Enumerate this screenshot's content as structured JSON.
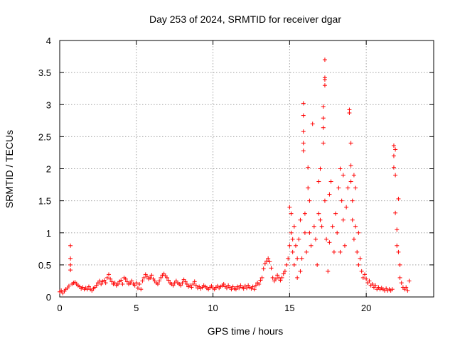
{
  "chart_data": {
    "type": "scatter",
    "title": "Day 253 of 2024, SRMTID for receiver dgar",
    "xlabel": "GPS time / hours",
    "ylabel": "SRMTID / TECUs",
    "xlim": [
      0,
      24.4
    ],
    "ylim": [
      0,
      4
    ],
    "x_ticks": [
      0,
      5,
      10,
      15,
      20
    ],
    "x_tick_labels": [
      "0",
      "5",
      "10",
      "15",
      "20"
    ],
    "y_ticks": [
      0,
      0.5,
      1,
      1.5,
      2,
      2.5,
      3,
      3.5,
      4
    ],
    "y_tick_labels": [
      "0",
      "0.5",
      "1",
      "1.5",
      "2",
      "2.5",
      "3",
      "3.5",
      "4"
    ],
    "grid": true,
    "marker": "+",
    "series": [
      {
        "name": "SRMTID",
        "color": "#ff0000",
        "points": [
          [
            0.0,
            0.08
          ],
          [
            0.1,
            0.1
          ],
          [
            0.2,
            0.06
          ],
          [
            0.3,
            0.09
          ],
          [
            0.4,
            0.12
          ],
          [
            0.5,
            0.14
          ],
          [
            0.6,
            0.17
          ],
          [
            0.7,
            0.8
          ],
          [
            0.7,
            0.6
          ],
          [
            0.7,
            0.5
          ],
          [
            0.7,
            0.42
          ],
          [
            0.8,
            0.2
          ],
          [
            0.9,
            0.22
          ],
          [
            1.0,
            0.23
          ],
          [
            1.1,
            0.2
          ],
          [
            1.2,
            0.18
          ],
          [
            1.3,
            0.16
          ],
          [
            1.4,
            0.13
          ],
          [
            1.5,
            0.15
          ],
          [
            1.6,
            0.12
          ],
          [
            1.7,
            0.14
          ],
          [
            1.8,
            0.12
          ],
          [
            1.9,
            0.16
          ],
          [
            2.0,
            0.12
          ],
          [
            2.1,
            0.1
          ],
          [
            2.2,
            0.13
          ],
          [
            2.3,
            0.15
          ],
          [
            2.4,
            0.18
          ],
          [
            2.5,
            0.22
          ],
          [
            2.6,
            0.25
          ],
          [
            2.7,
            0.2
          ],
          [
            2.8,
            0.24
          ],
          [
            2.9,
            0.26
          ],
          [
            3.0,
            0.22
          ],
          [
            3.1,
            0.3
          ],
          [
            3.2,
            0.35
          ],
          [
            3.3,
            0.28
          ],
          [
            3.4,
            0.24
          ],
          [
            3.5,
            0.2
          ],
          [
            3.6,
            0.22
          ],
          [
            3.7,
            0.18
          ],
          [
            3.8,
            0.2
          ],
          [
            3.9,
            0.24
          ],
          [
            4.0,
            0.26
          ],
          [
            4.1,
            0.2
          ],
          [
            4.2,
            0.3
          ],
          [
            4.3,
            0.28
          ],
          [
            4.4,
            0.24
          ],
          [
            4.5,
            0.2
          ],
          [
            4.6,
            0.22
          ],
          [
            4.7,
            0.25
          ],
          [
            4.8,
            0.2
          ],
          [
            4.9,
            0.18
          ],
          [
            5.0,
            0.22
          ],
          [
            5.1,
            0.14
          ],
          [
            5.2,
            0.2
          ],
          [
            5.3,
            0.12
          ],
          [
            5.4,
            0.25
          ],
          [
            5.5,
            0.3
          ],
          [
            5.6,
            0.35
          ],
          [
            5.7,
            0.32
          ],
          [
            5.8,
            0.28
          ],
          [
            5.9,
            0.3
          ],
          [
            6.0,
            0.34
          ],
          [
            6.1,
            0.28
          ],
          [
            6.2,
            0.25
          ],
          [
            6.3,
            0.22
          ],
          [
            6.4,
            0.2
          ],
          [
            6.5,
            0.25
          ],
          [
            6.6,
            0.3
          ],
          [
            6.7,
            0.34
          ],
          [
            6.8,
            0.36
          ],
          [
            6.9,
            0.33
          ],
          [
            7.0,
            0.3
          ],
          [
            7.1,
            0.26
          ],
          [
            7.2,
            0.22
          ],
          [
            7.3,
            0.2
          ],
          [
            7.4,
            0.18
          ],
          [
            7.5,
            0.22
          ],
          [
            7.6,
            0.25
          ],
          [
            7.7,
            0.22
          ],
          [
            7.8,
            0.2
          ],
          [
            7.9,
            0.18
          ],
          [
            8.0,
            0.22
          ],
          [
            8.1,
            0.27
          ],
          [
            8.2,
            0.24
          ],
          [
            8.3,
            0.2
          ],
          [
            8.4,
            0.16
          ],
          [
            8.5,
            0.18
          ],
          [
            8.6,
            0.15
          ],
          [
            8.7,
            0.2
          ],
          [
            8.8,
            0.24
          ],
          [
            8.9,
            0.18
          ],
          [
            9.0,
            0.14
          ],
          [
            9.1,
            0.16
          ],
          [
            9.2,
            0.13
          ],
          [
            9.3,
            0.15
          ],
          [
            9.4,
            0.18
          ],
          [
            9.5,
            0.16
          ],
          [
            9.6,
            0.14
          ],
          [
            9.7,
            0.12
          ],
          [
            9.8,
            0.15
          ],
          [
            9.9,
            0.17
          ],
          [
            10.0,
            0.14
          ],
          [
            10.1,
            0.12
          ],
          [
            10.2,
            0.15
          ],
          [
            10.3,
            0.17
          ],
          [
            10.4,
            0.14
          ],
          [
            10.5,
            0.16
          ],
          [
            10.6,
            0.18
          ],
          [
            10.7,
            0.2
          ],
          [
            10.8,
            0.16
          ],
          [
            10.9,
            0.14
          ],
          [
            11.0,
            0.18
          ],
          [
            11.1,
            0.15
          ],
          [
            11.2,
            0.12
          ],
          [
            11.3,
            0.16
          ],
          [
            11.4,
            0.13
          ],
          [
            11.5,
            0.12
          ],
          [
            11.6,
            0.16
          ],
          [
            11.7,
            0.14
          ],
          [
            11.8,
            0.18
          ],
          [
            11.9,
            0.15
          ],
          [
            12.0,
            0.13
          ],
          [
            12.1,
            0.17
          ],
          [
            12.2,
            0.14
          ],
          [
            12.3,
            0.18
          ],
          [
            12.4,
            0.15
          ],
          [
            12.5,
            0.13
          ],
          [
            12.6,
            0.16
          ],
          [
            12.7,
            0.12
          ],
          [
            12.8,
            0.18
          ],
          [
            12.9,
            0.22
          ],
          [
            13.0,
            0.2
          ],
          [
            13.1,
            0.26
          ],
          [
            13.2,
            0.3
          ],
          [
            13.3,
            0.44
          ],
          [
            13.4,
            0.52
          ],
          [
            13.5,
            0.56
          ],
          [
            13.6,
            0.6
          ],
          [
            13.7,
            0.55
          ],
          [
            13.8,
            0.45
          ],
          [
            13.9,
            0.3
          ],
          [
            14.0,
            0.25
          ],
          [
            14.1,
            0.28
          ],
          [
            14.2,
            0.34
          ],
          [
            14.3,
            0.3
          ],
          [
            14.4,
            0.26
          ],
          [
            14.5,
            0.3
          ],
          [
            14.6,
            0.36
          ],
          [
            14.7,
            0.4
          ],
          [
            14.8,
            0.5
          ],
          [
            14.9,
            0.6
          ],
          [
            15.0,
            0.8
          ],
          [
            15.0,
            1.4
          ],
          [
            15.1,
            1.0
          ],
          [
            15.1,
            1.3
          ],
          [
            15.2,
            0.9
          ],
          [
            15.2,
            0.7
          ],
          [
            15.3,
            1.1
          ],
          [
            15.3,
            0.5
          ],
          [
            15.4,
            0.8
          ],
          [
            15.5,
            0.6
          ],
          [
            15.5,
            0.3
          ],
          [
            15.6,
            0.9
          ],
          [
            15.7,
            0.4
          ],
          [
            15.7,
            1.2
          ],
          [
            15.8,
            0.6
          ],
          [
            15.9,
            3.02
          ],
          [
            15.9,
            2.83
          ],
          [
            15.9,
            2.58
          ],
          [
            15.9,
            2.4
          ],
          [
            15.9,
            2.28
          ],
          [
            16.0,
            1.3
          ],
          [
            16.0,
            1.0
          ],
          [
            16.1,
            0.7
          ],
          [
            16.2,
            2.02
          ],
          [
            16.2,
            1.7
          ],
          [
            16.3,
            1.5
          ],
          [
            16.3,
            1.0
          ],
          [
            16.4,
            0.8
          ],
          [
            16.5,
            2.7
          ],
          [
            16.6,
            1.1
          ],
          [
            16.7,
            0.9
          ],
          [
            16.8,
            0.5
          ],
          [
            16.9,
            1.8
          ],
          [
            16.9,
            1.3
          ],
          [
            17.0,
            2.0
          ],
          [
            17.0,
            1.2
          ],
          [
            17.1,
            1.1
          ],
          [
            17.2,
            2.4
          ],
          [
            17.2,
            2.64
          ],
          [
            17.2,
            2.79
          ],
          [
            17.2,
            2.97
          ],
          [
            17.3,
            3.7
          ],
          [
            17.3,
            3.42
          ],
          [
            17.3,
            3.39
          ],
          [
            17.3,
            3.3
          ],
          [
            17.3,
            1.5
          ],
          [
            17.4,
            0.9
          ],
          [
            17.5,
            0.4
          ],
          [
            17.6,
            1.6
          ],
          [
            17.6,
            0.85
          ],
          [
            17.7,
            1.8
          ],
          [
            17.8,
            1.1
          ],
          [
            17.9,
            0.7
          ],
          [
            18.0,
            1.3
          ],
          [
            18.1,
            1.0
          ],
          [
            18.2,
            1.7
          ],
          [
            18.3,
            2.0
          ],
          [
            18.3,
            0.7
          ],
          [
            18.4,
            1.5
          ],
          [
            18.5,
            1.9
          ],
          [
            18.5,
            1.2
          ],
          [
            18.6,
            0.8
          ],
          [
            18.7,
            1.4
          ],
          [
            18.8,
            1.7
          ],
          [
            18.9,
            2.87
          ],
          [
            18.9,
            2.92
          ],
          [
            19.0,
            2.4
          ],
          [
            19.0,
            2.05
          ],
          [
            19.0,
            1.8
          ],
          [
            19.1,
            1.5
          ],
          [
            19.1,
            1.2
          ],
          [
            19.2,
            1.9
          ],
          [
            19.2,
            0.9
          ],
          [
            19.3,
            1.7
          ],
          [
            19.3,
            1.1
          ],
          [
            19.4,
            0.7
          ],
          [
            19.5,
            1.0
          ],
          [
            19.5,
            0.5
          ],
          [
            19.6,
            0.6
          ],
          [
            19.7,
            0.4
          ],
          [
            19.8,
            0.3
          ],
          [
            19.9,
            0.35
          ],
          [
            20.0,
            0.28
          ],
          [
            20.1,
            0.22
          ],
          [
            20.2,
            0.25
          ],
          [
            20.3,
            0.18
          ],
          [
            20.4,
            0.2
          ],
          [
            20.5,
            0.15
          ],
          [
            20.6,
            0.18
          ],
          [
            20.7,
            0.12
          ],
          [
            20.8,
            0.15
          ],
          [
            20.9,
            0.12
          ],
          [
            21.0,
            0.14
          ],
          [
            21.1,
            0.12
          ],
          [
            21.2,
            0.1
          ],
          [
            21.3,
            0.13
          ],
          [
            21.4,
            0.1
          ],
          [
            21.5,
            0.12
          ],
          [
            21.6,
            0.1
          ],
          [
            21.7,
            0.12
          ],
          [
            21.8,
            2.36
          ],
          [
            21.8,
            2.2
          ],
          [
            21.8,
            2.02
          ],
          [
            21.9,
            2.3
          ],
          [
            21.9,
            1.9
          ],
          [
            21.9,
            1.31
          ],
          [
            22.0,
            1.05
          ],
          [
            22.0,
            0.8
          ],
          [
            22.1,
            1.53
          ],
          [
            22.1,
            0.7
          ],
          [
            22.2,
            0.5
          ],
          [
            22.2,
            0.3
          ],
          [
            22.3,
            0.22
          ],
          [
            22.4,
            0.15
          ],
          [
            22.5,
            0.12
          ],
          [
            22.6,
            0.15
          ],
          [
            22.7,
            0.1
          ],
          [
            22.8,
            0.25
          ]
        ]
      }
    ]
  }
}
